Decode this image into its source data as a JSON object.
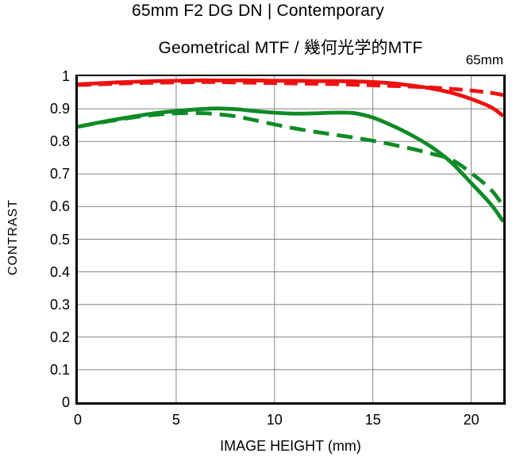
{
  "header": {
    "title": "65mm F2 DG DN | Contemporary",
    "subtitle": "Geometrical MTF / 幾何光学的MTF",
    "corner_label": "65mm"
  },
  "chart_data": {
    "type": "line",
    "title": "Geometrical MTF / 幾何光学的MTF",
    "xlabel": "IMAGE HEIGHT (mm)",
    "ylabel": "CONTRAST",
    "xlim": [
      0,
      21.63
    ],
    "ylim": [
      0,
      1
    ],
    "grid": true,
    "legend_position": "none",
    "colors": {
      "grid": "#848484",
      "axis": "#000000"
    },
    "x_ticks": [
      {
        "label": "0",
        "value": 0
      },
      {
        "label": "5",
        "value": 5
      },
      {
        "label": "10",
        "value": 10
      },
      {
        "label": "15",
        "value": 15
      },
      {
        "label": "20",
        "value": 20
      }
    ],
    "y_ticks": [
      {
        "label": "1",
        "value": 1
      },
      {
        "label": "0.9",
        "value": 0.9
      },
      {
        "label": "0.8",
        "value": 0.8
      },
      {
        "label": "0.7",
        "value": 0.7
      },
      {
        "label": "0.6",
        "value": 0.6
      },
      {
        "label": "0.5",
        "value": 0.5
      },
      {
        "label": "0.4",
        "value": 0.4
      },
      {
        "label": "0.3",
        "value": 0.3
      },
      {
        "label": "0.2",
        "value": 0.2
      },
      {
        "label": "0.1",
        "value": 0.1
      },
      {
        "label": "0",
        "value": 0
      }
    ],
    "x": [
      0,
      1,
      2,
      3,
      4,
      5,
      6,
      7,
      8,
      9,
      10,
      11,
      12,
      13,
      14,
      15,
      16,
      17,
      18,
      19,
      20,
      21,
      21.63
    ],
    "series": [
      {
        "name": "red-solid",
        "color": "#ee1111",
        "style": "solid",
        "dash": "",
        "values": [
          0.975,
          0.978,
          0.981,
          0.983,
          0.985,
          0.986,
          0.987,
          0.987,
          0.987,
          0.987,
          0.986,
          0.986,
          0.985,
          0.985,
          0.984,
          0.982,
          0.978,
          0.971,
          0.962,
          0.949,
          0.93,
          0.905,
          0.878
        ]
      },
      {
        "name": "red-dashed",
        "color": "#ee1111",
        "style": "dashed",
        "dash": "17 9",
        "values": [
          0.973,
          0.975,
          0.977,
          0.979,
          0.98,
          0.981,
          0.982,
          0.982,
          0.981,
          0.98,
          0.979,
          0.978,
          0.977,
          0.976,
          0.974,
          0.972,
          0.97,
          0.968,
          0.965,
          0.961,
          0.956,
          0.949,
          0.942
        ]
      },
      {
        "name": "green-solid",
        "color": "#0f8b26",
        "style": "solid",
        "dash": "",
        "values": [
          0.845,
          0.857,
          0.868,
          0.878,
          0.887,
          0.893,
          0.898,
          0.901,
          0.899,
          0.893,
          0.888,
          0.885,
          0.886,
          0.888,
          0.887,
          0.873,
          0.848,
          0.818,
          0.782,
          0.735,
          0.672,
          0.607,
          0.554
        ]
      },
      {
        "name": "green-dashed",
        "color": "#0f8b26",
        "style": "dashed",
        "dash": "20 10",
        "values": [
          0.845,
          0.856,
          0.866,
          0.875,
          0.882,
          0.886,
          0.887,
          0.884,
          0.877,
          0.865,
          0.852,
          0.84,
          0.83,
          0.821,
          0.812,
          0.802,
          0.79,
          0.777,
          0.762,
          0.744,
          0.703,
          0.652,
          0.602
        ]
      }
    ]
  }
}
